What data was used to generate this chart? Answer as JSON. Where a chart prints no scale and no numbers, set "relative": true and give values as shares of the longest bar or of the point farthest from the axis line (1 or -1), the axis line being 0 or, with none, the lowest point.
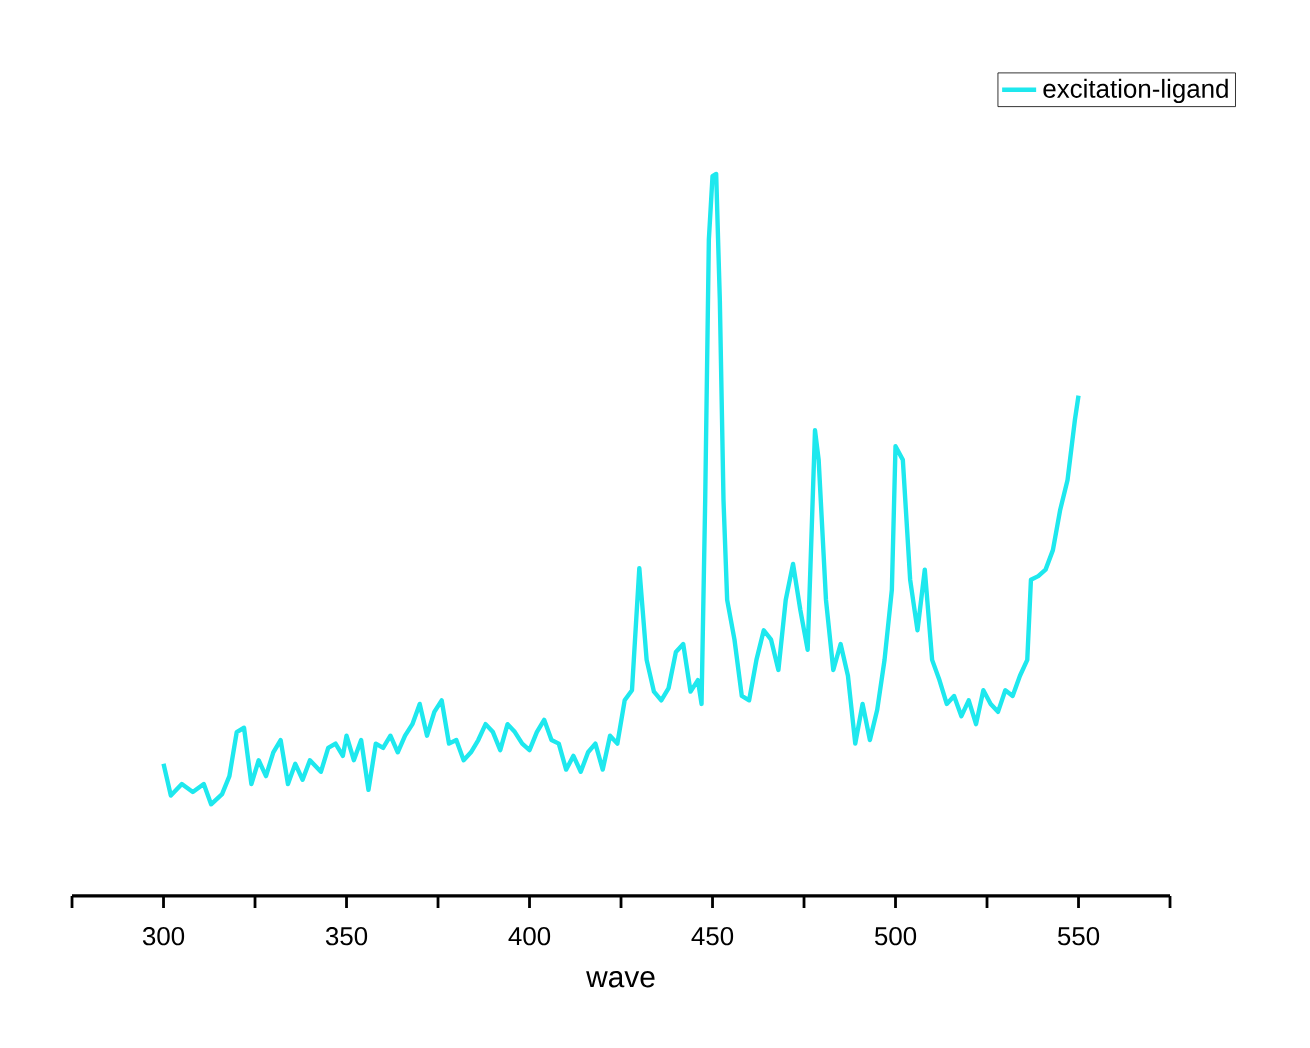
{
  "chart_data": {
    "type": "line",
    "relative": true,
    "xlabel": "wave",
    "legend": "top right",
    "line_style": "solid",
    "xlim": [
      275,
      575
    ],
    "xticks": [
      {
        "value": 275,
        "label": null
      },
      300,
      {
        "value": 325,
        "label": null
      },
      350,
      {
        "value": 375,
        "label": null
      },
      400,
      {
        "value": 425,
        "label": null
      },
      450,
      {
        "value": 475,
        "label": null
      },
      500,
      {
        "value": 525,
        "label": null
      },
      550,
      {
        "value": 575,
        "label": null
      }
    ],
    "series": [
      {
        "name": "excitation-ligand",
        "color": "#1ee8ee",
        "x": [
          300,
          302,
          305,
          308,
          311,
          313,
          316,
          318,
          320,
          322,
          324,
          326,
          328,
          330,
          332,
          334,
          336,
          338,
          340,
          343,
          345,
          347,
          349,
          350,
          352,
          354,
          356,
          358,
          360,
          362,
          364,
          366,
          368,
          370,
          372,
          374,
          376,
          378,
          380,
          382,
          384,
          386,
          388,
          390,
          392,
          394,
          396,
          398,
          400,
          402,
          404,
          406,
          408,
          410,
          412,
          414,
          416,
          418,
          420,
          422,
          424,
          426,
          428,
          430,
          432,
          434,
          436,
          438,
          440,
          442,
          444,
          446,
          447,
          448,
          449,
          450,
          451,
          452,
          453,
          454,
          456,
          458,
          460,
          462,
          464,
          466,
          468,
          470,
          472,
          474,
          476,
          478,
          479,
          481,
          483,
          485,
          487,
          489,
          491,
          493,
          495,
          497,
          499,
          500,
          502,
          504,
          506,
          508,
          510,
          512,
          514,
          516,
          518,
          520,
          522,
          524,
          526,
          528,
          530,
          532,
          534,
          536,
          537,
          539,
          541,
          543,
          545,
          547,
          549,
          550
        ],
        "values": [
          0.183,
          0.139,
          0.155,
          0.144,
          0.155,
          0.127,
          0.141,
          0.166,
          0.227,
          0.233,
          0.155,
          0.188,
          0.166,
          0.199,
          0.216,
          0.155,
          0.183,
          0.161,
          0.188,
          0.172,
          0.205,
          0.211,
          0.194,
          0.222,
          0.188,
          0.216,
          0.147,
          0.211,
          0.205,
          0.222,
          0.199,
          0.222,
          0.238,
          0.266,
          0.222,
          0.255,
          0.271,
          0.211,
          0.216,
          0.188,
          0.199,
          0.216,
          0.238,
          0.227,
          0.202,
          0.238,
          0.227,
          0.211,
          0.202,
          0.227,
          0.244,
          0.216,
          0.211,
          0.175,
          0.194,
          0.172,
          0.199,
          0.211,
          0.175,
          0.222,
          0.211,
          0.271,
          0.285,
          0.454,
          0.327,
          0.283,
          0.271,
          0.288,
          0.338,
          0.349,
          0.283,
          0.299,
          0.266,
          0.548,
          0.909,
          0.997,
          1,
          0.825,
          0.548,
          0.41,
          0.355,
          0.277,
          0.271,
          0.327,
          0.368,
          0.355,
          0.313,
          0.41,
          0.46,
          0.396,
          0.341,
          0.645,
          0.604,
          0.41,
          0.313,
          0.349,
          0.305,
          0.211,
          0.266,
          0.216,
          0.258,
          0.327,
          0.424,
          0.623,
          0.604,
          0.438,
          0.368,
          0.452,
          0.327,
          0.299,
          0.266,
          0.277,
          0.249,
          0.271,
          0.238,
          0.285,
          0.266,
          0.255,
          0.285,
          0.277,
          0.305,
          0.327,
          0.438,
          0.443,
          0.452,
          0.479,
          0.535,
          0.576,
          0.659,
          0.693
        ]
      }
    ]
  }
}
